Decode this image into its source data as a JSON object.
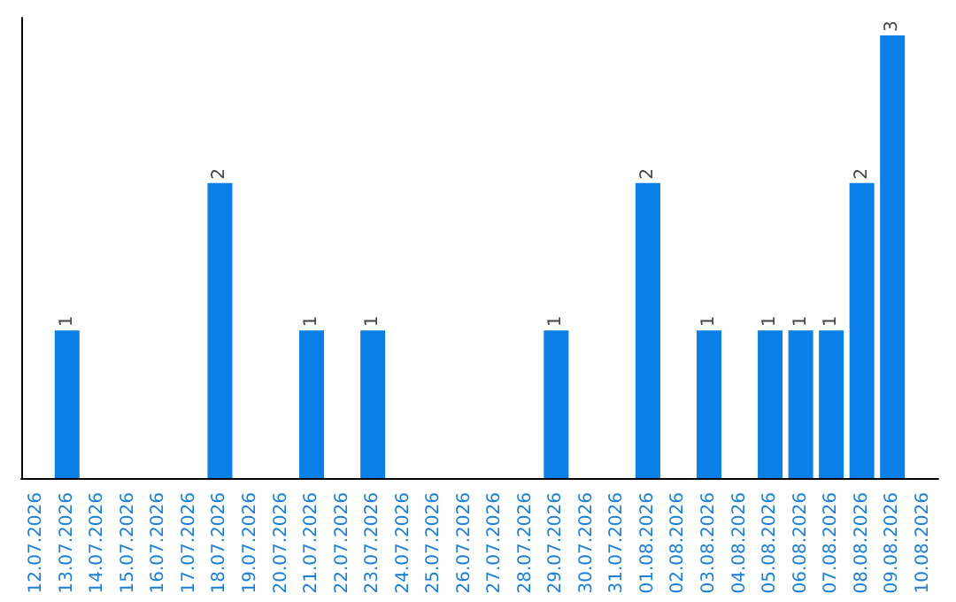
{
  "chart_data": {
    "type": "bar",
    "categories": [
      "12.07.2026",
      "13.07.2026",
      "14.07.2026",
      "15.07.2026",
      "16.07.2026",
      "17.07.2026",
      "18.07.2026",
      "19.07.2026",
      "20.07.2026",
      "21.07.2026",
      "22.07.2026",
      "23.07.2026",
      "24.07.2026",
      "25.07.2026",
      "26.07.2026",
      "27.07.2026",
      "28.07.2026",
      "29.07.2026",
      "30.07.2026",
      "31.07.2026",
      "01.08.2026",
      "02.08.2026",
      "03.08.2026",
      "04.08.2026",
      "05.08.2026",
      "06.08.2026",
      "07.08.2026",
      "08.08.2026",
      "09.08.2026",
      "10.08.2026"
    ],
    "values": [
      0,
      1,
      0,
      0,
      0,
      0,
      2,
      0,
      0,
      1,
      0,
      1,
      0,
      0,
      0,
      0,
      0,
      1,
      0,
      0,
      2,
      0,
      1,
      0,
      1,
      1,
      1,
      2,
      3,
      0
    ],
    "value_labels": [
      null,
      "1",
      null,
      null,
      null,
      null,
      "2",
      null,
      null,
      "1",
      null,
      "1",
      null,
      null,
      null,
      null,
      null,
      "1",
      null,
      null,
      "2",
      null,
      "1",
      null,
      "1",
      "1",
      "1",
      "2",
      "3",
      null
    ],
    "color": "#0a7fe5",
    "grid": false,
    "tick_labels": "x"
  }
}
